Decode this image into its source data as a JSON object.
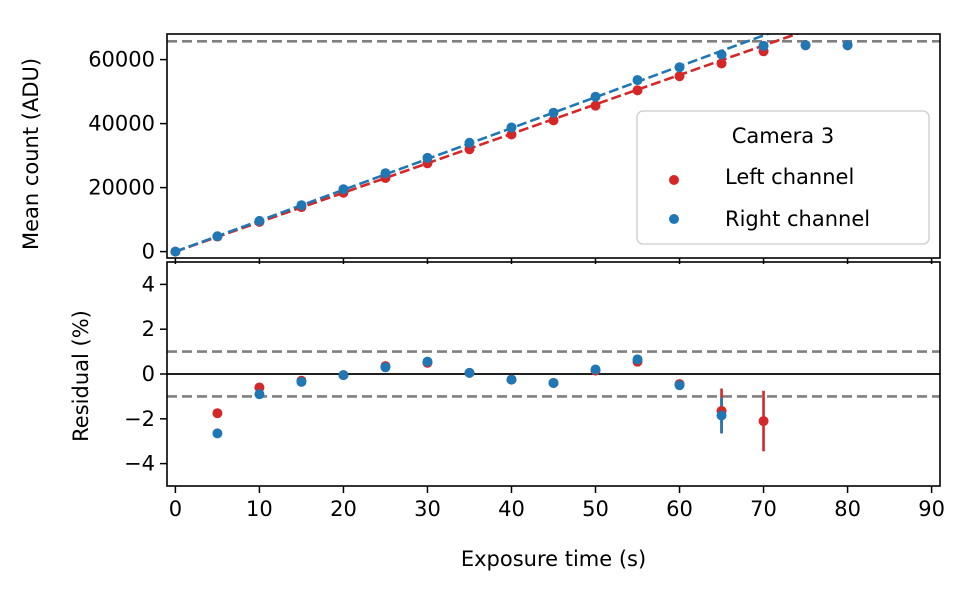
{
  "chart_data": [
    {
      "type": "scatter",
      "panel": "top",
      "xlabel": "",
      "ylabel": "Mean count (ADU)",
      "xlim": [
        -1,
        91
      ],
      "ylim": [
        -2000,
        68000
      ],
      "xticks": [
        0,
        10,
        20,
        30,
        40,
        50,
        60,
        70,
        80,
        90
      ],
      "yticks": [
        0,
        20000,
        40000,
        60000
      ],
      "ytick_labels": [
        "0",
        "20000",
        "40000",
        "60000"
      ],
      "grid": false,
      "legend": {
        "title": "Camera 3",
        "placement": "center-right"
      },
      "saturation_level": 65700,
      "series": [
        {
          "name": "Left channel",
          "color": "#d62728",
          "x": [
            0,
            5,
            10,
            15,
            20,
            25,
            30,
            35,
            40,
            45,
            50,
            55,
            60,
            65,
            70,
            75,
            80
          ],
          "y": [
            0,
            4700,
            9300,
            13900,
            18400,
            23000,
            27600,
            32000,
            36600,
            41000,
            45600,
            50400,
            54800,
            58800,
            62600,
            64500,
            64500
          ],
          "fit_slope": 920
        },
        {
          "name": "Right channel",
          "color": "#1f77b4",
          "x": [
            0,
            5,
            10,
            15,
            20,
            25,
            30,
            35,
            40,
            45,
            50,
            55,
            60,
            65,
            70,
            75,
            80
          ],
          "y": [
            0,
            4800,
            9600,
            14500,
            19500,
            24500,
            29300,
            34000,
            38800,
            43400,
            48400,
            53600,
            57600,
            61600,
            64300,
            64500,
            64500
          ],
          "fit_slope": 965
        }
      ]
    },
    {
      "type": "scatter",
      "panel": "bottom",
      "xlabel": "Exposure time (s)",
      "ylabel": "Residual (%)",
      "xlim": [
        -1,
        91
      ],
      "ylim": [
        -5,
        5
      ],
      "xticks": [
        0,
        10,
        20,
        30,
        40,
        50,
        60,
        70,
        80,
        90
      ],
      "xtick_labels": [
        "0",
        "10",
        "20",
        "30",
        "40",
        "50",
        "60",
        "70",
        "80",
        "90"
      ],
      "yticks": [
        -4,
        -2,
        0,
        2,
        4
      ],
      "ytick_labels": [
        "−4",
        "−2",
        "0",
        "2",
        "4"
      ],
      "grid": false,
      "reference_lines": [
        -1,
        1
      ],
      "zero_line": 0,
      "series": [
        {
          "name": "Left channel",
          "color": "#d62728",
          "x": [
            5,
            10,
            15,
            20,
            25,
            30,
            35,
            40,
            45,
            50,
            55,
            60,
            65,
            70
          ],
          "y": [
            -1.75,
            -0.6,
            -0.3,
            -0.05,
            0.35,
            0.5,
            0.05,
            -0.25,
            -0.4,
            0.15,
            0.55,
            -0.45,
            -1.65,
            -2.1
          ],
          "yerr": [
            0,
            0,
            0,
            0,
            0,
            0,
            0,
            0,
            0,
            0,
            0,
            0,
            1.0,
            1.35
          ]
        },
        {
          "name": "Right channel",
          "color": "#1f77b4",
          "x": [
            5,
            10,
            15,
            20,
            25,
            30,
            35,
            40,
            45,
            50,
            55,
            60,
            65
          ],
          "y": [
            -2.65,
            -0.9,
            -0.35,
            -0.05,
            0.3,
            0.55,
            0.05,
            -0.25,
            -0.4,
            0.2,
            0.65,
            -0.5,
            -1.85
          ],
          "yerr": [
            0,
            0,
            0,
            0,
            0,
            0,
            0,
            0,
            0,
            0,
            0,
            0,
            0.8
          ]
        }
      ]
    }
  ]
}
